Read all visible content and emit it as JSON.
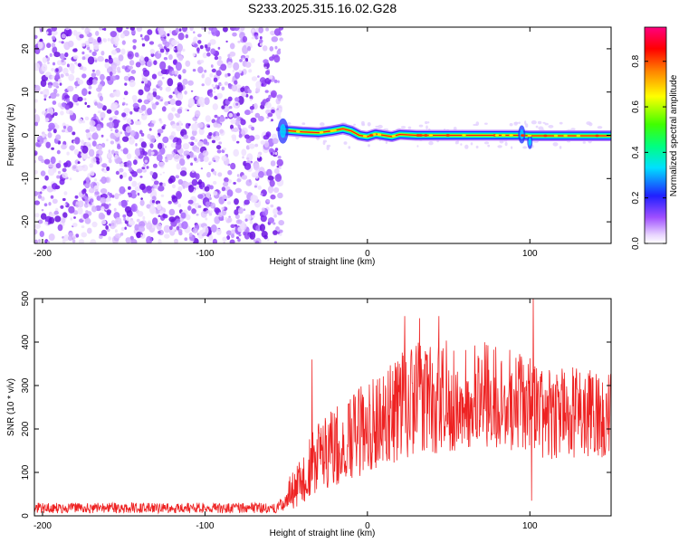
{
  "title": "S233.2025.315.16.02.G28",
  "chart_data": [
    {
      "type": "heatmap",
      "xlabel": "Height of straight line (km)",
      "ylabel": "Frequency (Hz)",
      "xlim": [
        -205,
        150
      ],
      "ylim": [
        -25,
        25
      ],
      "xticks": [
        -200,
        -100,
        0,
        100
      ],
      "yticks": [
        -20,
        -10,
        0,
        10,
        20
      ],
      "colorbar": {
        "label": "Normalized spectral amplitude",
        "range": [
          0,
          0.95
        ],
        "ticks": [
          0.0,
          0.2,
          0.4,
          0.6,
          0.8
        ]
      },
      "noise_region_x": [
        -205,
        -53
      ],
      "signal_line_points": [
        {
          "x": -53,
          "y": 1.2
        },
        {
          "x": -40,
          "y": 0.8
        },
        {
          "x": -30,
          "y": 0.6
        },
        {
          "x": -22,
          "y": 1.0
        },
        {
          "x": -15,
          "y": 1.5
        },
        {
          "x": -10,
          "y": 1.0
        },
        {
          "x": -5,
          "y": 0.0
        },
        {
          "x": 0,
          "y": -0.3
        },
        {
          "x": 5,
          "y": 0.3
        },
        {
          "x": 10,
          "y": 0.0
        },
        {
          "x": 15,
          "y": -0.3
        },
        {
          "x": 20,
          "y": 0.2
        },
        {
          "x": 30,
          "y": 0.0
        },
        {
          "x": 95,
          "y": 0.0
        },
        {
          "x": 100,
          "y": -0.1
        },
        {
          "x": 150,
          "y": -0.1
        }
      ]
    },
    {
      "type": "line",
      "xlabel": "Height of straight line (km)",
      "ylabel": "SNR (10 * v/v)",
      "xlim": [
        -205,
        150
      ],
      "ylim": [
        0,
        500
      ],
      "xticks": [
        -200,
        -100,
        0,
        100
      ],
      "yticks": [
        0,
        100,
        200,
        300,
        400,
        500
      ],
      "color": "#ee2222",
      "envelope": [
        {
          "x": -205,
          "base": 18,
          "amp": 12
        },
        {
          "x": -55,
          "base": 18,
          "amp": 12
        },
        {
          "x": -42,
          "base": 80,
          "amp": 60
        },
        {
          "x": -30,
          "base": 140,
          "amp": 80
        },
        {
          "x": -10,
          "base": 180,
          "amp": 100
        },
        {
          "x": 10,
          "base": 230,
          "amp": 120
        },
        {
          "x": 30,
          "base": 270,
          "amp": 130
        },
        {
          "x": 60,
          "base": 280,
          "amp": 130
        },
        {
          "x": 90,
          "base": 270,
          "amp": 120
        },
        {
          "x": 110,
          "base": 240,
          "amp": 110
        },
        {
          "x": 150,
          "base": 230,
          "amp": 100
        }
      ],
      "spikes": [
        {
          "x": -34,
          "y": 360
        },
        {
          "x": 23,
          "y": 460
        },
        {
          "x": 32,
          "y": 455
        },
        {
          "x": 44,
          "y": 460
        },
        {
          "x": 102,
          "y": 500
        },
        {
          "x": 101,
          "y": 35
        }
      ]
    }
  ]
}
